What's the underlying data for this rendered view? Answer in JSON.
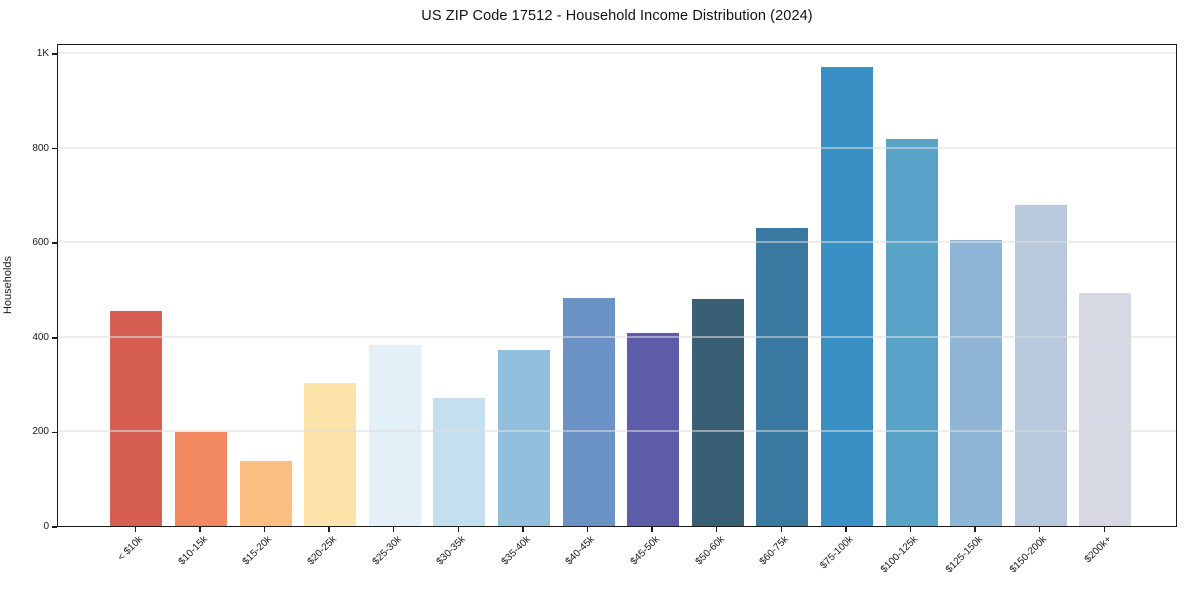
{
  "chart_data": {
    "type": "bar",
    "title": "US ZIP Code 17512 - Household Income Distribution (2024)",
    "xlabel": "",
    "ylabel": "Households",
    "categories": [
      "< $10k",
      "$10-15k",
      "$15-20k",
      "$20-25k",
      "$25-30k",
      "$30-35k",
      "$35-40k",
      "$40-45k",
      "$45-50k",
      "$50-60k",
      "$60-75k",
      "$75-100k",
      "$100-125k",
      "$125-150k",
      "$150-200k",
      "$200k+"
    ],
    "values": [
      455,
      198,
      138,
      303,
      382,
      270,
      373,
      482,
      408,
      480,
      630,
      970,
      818,
      605,
      679,
      492
    ],
    "bar_colors": [
      "#d65f51",
      "#f2885f",
      "#fcbd80",
      "#fce3a9",
      "#e3f0f7",
      "#c4e0ee",
      "#92c0dc",
      "#6a92c4",
      "#5d5ca8",
      "#395f75",
      "#3878a1",
      "#3890c4",
      "#5aa3c8",
      "#8eb4d6",
      "#b8c8dd",
      "#d6d8e4"
    ],
    "ylim": [
      0,
      1021
    ],
    "yticks": [
      {
        "value": 0,
        "label": "0"
      },
      {
        "value": 200,
        "label": "200"
      },
      {
        "value": 400,
        "label": "400"
      },
      {
        "value": 600,
        "label": "600"
      },
      {
        "value": 800,
        "label": "800"
      },
      {
        "value": 1000,
        "label": "1K"
      }
    ],
    "grid": "horizontal",
    "legend": "none",
    "background": "#ffffff",
    "frame_color": "#1c1c1c",
    "x_tick_rotation_deg": 45
  }
}
